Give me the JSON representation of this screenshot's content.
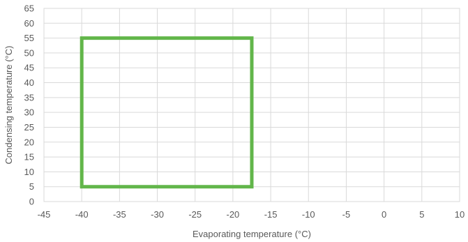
{
  "chart_data": {
    "type": "line",
    "title": "",
    "xlabel": "Evaporating temperature (°C)",
    "ylabel": "Condensing temperature (°C)",
    "xlim": [
      -45,
      10
    ],
    "ylim": [
      0,
      65
    ],
    "x_ticks": [
      -45,
      -40,
      -35,
      -30,
      -25,
      -20,
      -15,
      -10,
      -5,
      0,
      5,
      10
    ],
    "y_ticks": [
      0,
      5,
      10,
      15,
      20,
      25,
      30,
      35,
      40,
      45,
      50,
      55,
      60,
      65
    ],
    "x_tick_labels": [
      "-45",
      "-40",
      "-35",
      "-30",
      "-25",
      "-20",
      "-15",
      "-10",
      "-5",
      "0",
      "5",
      "10"
    ],
    "y_tick_labels": [
      "0",
      "5",
      "10",
      "15",
      "20",
      "25",
      "30",
      "35",
      "40",
      "45",
      "50",
      "55",
      "60",
      "65"
    ],
    "grid": true,
    "legend": "none",
    "series": [
      {
        "color": "#62b64a",
        "closed": true,
        "x": [
          -40,
          -17.5,
          -17.5,
          -40,
          -40
        ],
        "y": [
          55,
          55,
          5,
          5,
          55
        ]
      }
    ]
  }
}
